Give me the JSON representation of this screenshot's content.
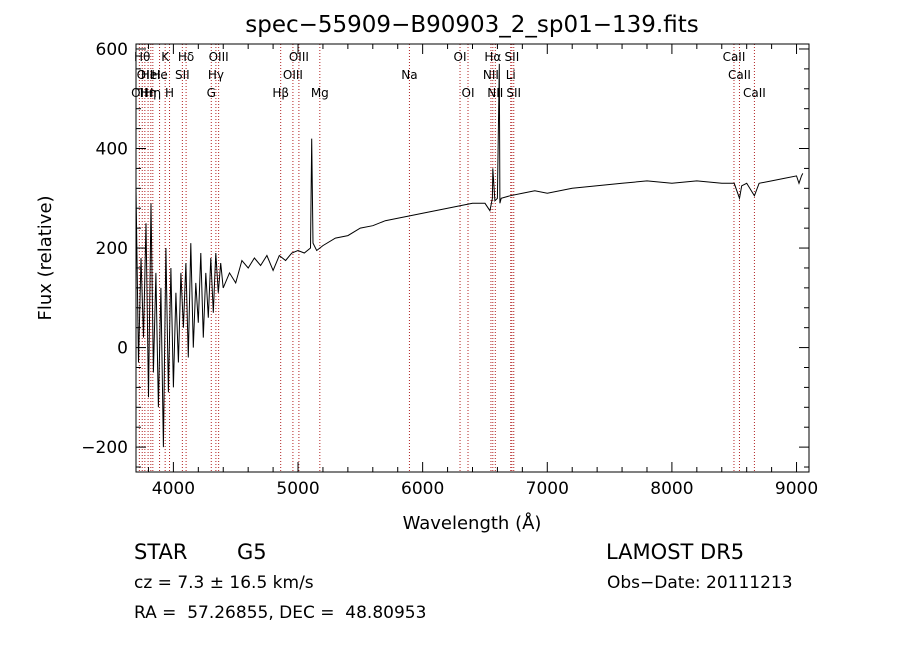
{
  "chart_data": {
    "type": "line",
    "title": "spec−55909−B90903_2_sp01−139.fits",
    "xlabel": "Wavelength (Å)",
    "ylabel": "Flux (relative)",
    "xlim": [
      3700,
      9100
    ],
    "ylim": [
      -250,
      610
    ],
    "xticks": [
      4000,
      5000,
      6000,
      7000,
      8000,
      9000
    ],
    "yticks": [
      -200,
      0,
      200,
      400,
      600
    ],
    "ytick_labels": [
      "−200",
      "0",
      "200",
      "400",
      "600"
    ],
    "grid": false,
    "series": [
      {
        "color": "#000000",
        "x": [
          3700,
          3720,
          3740,
          3760,
          3780,
          3800,
          3820,
          3840,
          3860,
          3880,
          3900,
          3920,
          3940,
          3960,
          3980,
          4000,
          4020,
          4040,
          4060,
          4080,
          4100,
          4120,
          4140,
          4160,
          4180,
          4200,
          4220,
          4240,
          4260,
          4280,
          4300,
          4320,
          4340,
          4360,
          4380,
          4400,
          4450,
          4500,
          4550,
          4600,
          4650,
          4700,
          4750,
          4800,
          4850,
          4900,
          4950,
          5000,
          5050,
          5100,
          5110,
          5120,
          5150,
          5200,
          5300,
          5400,
          5500,
          5600,
          5700,
          5800,
          5900,
          6000,
          6100,
          6200,
          6300,
          6400,
          6500,
          6540,
          6560,
          6563,
          6580,
          6600,
          6615,
          6620,
          6630,
          6700,
          6800,
          6900,
          7000,
          7200,
          7400,
          7600,
          7800,
          8000,
          8200,
          8400,
          8500,
          8542,
          8560,
          8600,
          8662,
          8700,
          8800,
          8900,
          9000,
          9020,
          9040,
          9050
        ],
        "values": [
          320,
          -30,
          180,
          20,
          250,
          -100,
          290,
          -50,
          150,
          -120,
          120,
          -200,
          200,
          -90,
          160,
          -80,
          110,
          -30,
          150,
          40,
          170,
          -20,
          210,
          0,
          130,
          50,
          190,
          20,
          150,
          60,
          180,
          70,
          190,
          110,
          170,
          120,
          150,
          130,
          175,
          160,
          180,
          165,
          185,
          155,
          185,
          175,
          190,
          195,
          190,
          200,
          420,
          210,
          195,
          205,
          220,
          225,
          240,
          245,
          255,
          260,
          265,
          270,
          275,
          280,
          285,
          290,
          290,
          275,
          300,
          360,
          295,
          300,
          570,
          290,
          300,
          305,
          310,
          315,
          310,
          320,
          325,
          330,
          335,
          330,
          335,
          330,
          330,
          300,
          325,
          330,
          305,
          330,
          335,
          340,
          345,
          330,
          345,
          350
        ]
      }
    ],
    "line_marks": [
      {
        "x": 3727,
        "label": "OII",
        "row": 3
      },
      {
        "x": 3750,
        "label": "Hθ",
        "row": 1
      },
      {
        "x": 3771,
        "label": "OII",
        "row": 2
      },
      {
        "x": 3797,
        "label": "Hη",
        "row": 3
      },
      {
        "x": 3819,
        "label": "HeI",
        "row": 2
      },
      {
        "x": 3835,
        "label": "Hη",
        "row": 3
      },
      {
        "x": 3889,
        "label": "He",
        "row": 2
      },
      {
        "x": 3934,
        "label": "K",
        "row": 1
      },
      {
        "x": 3969,
        "label": "H",
        "row": 3
      },
      {
        "x": 4072,
        "label": "SII",
        "row": 2
      },
      {
        "x": 4102,
        "label": "Hδ",
        "row": 1
      },
      {
        "x": 4304,
        "label": "G",
        "row": 3
      },
      {
        "x": 4341,
        "label": "Hγ",
        "row": 2
      },
      {
        "x": 4363,
        "label": "OIII",
        "row": 1
      },
      {
        "x": 4861,
        "label": "Hβ",
        "row": 3
      },
      {
        "x": 4959,
        "label": "OIII",
        "row": 2
      },
      {
        "x": 5007,
        "label": "OIII",
        "row": 1
      },
      {
        "x": 5175,
        "label": "Mg",
        "row": 3
      },
      {
        "x": 5894,
        "label": "Na",
        "row": 2
      },
      {
        "x": 6300,
        "label": "OI",
        "row": 1
      },
      {
        "x": 6364,
        "label": "OI",
        "row": 3
      },
      {
        "x": 6548,
        "label": "NII",
        "row": 2
      },
      {
        "x": 6563,
        "label": "Hα",
        "row": 1
      },
      {
        "x": 6583,
        "label": "NII",
        "row": 3
      },
      {
        "x": 6707,
        "label": "Li",
        "row": 2
      },
      {
        "x": 6716,
        "label": "SII",
        "row": 1
      },
      {
        "x": 6731,
        "label": "SII",
        "row": 3
      },
      {
        "x": 8498,
        "label": "CaII",
        "row": 1
      },
      {
        "x": 8542,
        "label": "CaII",
        "row": 2
      },
      {
        "x": 8662,
        "label": "CaII",
        "row": 3
      }
    ]
  },
  "info": {
    "class": "STAR",
    "subclass": "G5",
    "survey": "LAMOST DR5",
    "cz": "cz = 7.3 ± 16.5 km/s",
    "obs_date": "Obs−Date: 20111213",
    "radec": "RA =  57.26855, DEC =  48.80953"
  }
}
